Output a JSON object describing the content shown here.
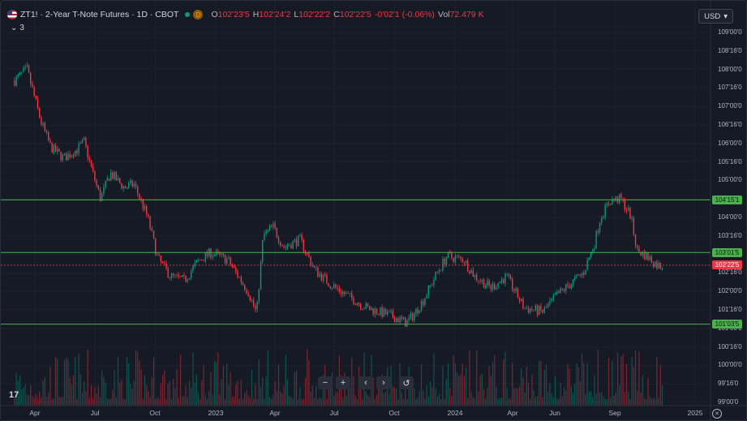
{
  "symbol": {
    "title": "ZT1! · 2-Year T-Note Futures · 1D · CBOT",
    "open_label": "O",
    "open": "102'23'5",
    "high_label": "H",
    "high": "102'24'2",
    "low_label": "L",
    "low": "102'22'2",
    "close_label": "C",
    "close": "102'22'5",
    "change": "-0'02'1 (-0.06%)",
    "vol_label": "Vol",
    "volume": "72.479 K",
    "d_badge": "D",
    "indicators_count": "3"
  },
  "currency": "USD",
  "price_axis": [
    "109'00'0",
    "108'16'0",
    "108'00'0",
    "107'16'0",
    "107'00'0",
    "106'16'0",
    "106'00'0",
    "105'16'0",
    "105'00'0",
    "104'16'0",
    "104'00'0",
    "103'16'0",
    "103'00'0",
    "102'16'0",
    "102'00'0",
    "101'16'0",
    "101'00'0",
    "100'16'0",
    "100'00'0",
    "99'16'0",
    "99'00'0"
  ],
  "time_axis": [
    "Apr",
    "Jul",
    "Oct",
    "2023",
    "Apr",
    "Jul",
    "Oct",
    "2024",
    "Apr",
    "Jun",
    "Sep",
    "2025"
  ],
  "price_tags": [
    {
      "label": "104'15'1",
      "kind": "level"
    },
    {
      "label": "103'01'5",
      "kind": "level"
    },
    {
      "label": "102'22'5",
      "kind": "last"
    },
    {
      "label": "101'03'5",
      "kind": "level"
    }
  ],
  "toolbar": {
    "zoom_out": "−",
    "zoom_in": "+",
    "scroll_left": "‹",
    "scroll_right": "›",
    "reset": "↺"
  },
  "logo": "17",
  "colors": {
    "up": "#089981",
    "down": "#f23645",
    "level_line": "#4caf50",
    "last_line": "#f23645"
  },
  "chart_data": {
    "type": "candlestick",
    "title": "",
    "y_unit": "price (points, 32nds, 8ths of 32nds)",
    "ylim": [
      99.0,
      109.0
    ],
    "horizontal_levels": [
      104.4746,
      103.0508,
      101.1133
    ],
    "last_price": 102.707,
    "x_start": "2022-03",
    "x_end": "2025-01",
    "close_path": [
      [
        "2022-03-01",
        107.7
      ],
      [
        "2022-03-20",
        108.0
      ],
      [
        "2022-04-10",
        106.6
      ],
      [
        "2022-04-25",
        105.9
      ],
      [
        "2022-05-15",
        105.6
      ],
      [
        "2022-06-05",
        105.85
      ],
      [
        "2022-06-15",
        106.05
      ],
      [
        "2022-06-25",
        105.4
      ],
      [
        "2022-07-10",
        104.5
      ],
      [
        "2022-07-25",
        105.2
      ],
      [
        "2022-08-15",
        104.8
      ],
      [
        "2022-08-30",
        104.9
      ],
      [
        "2022-09-20",
        104.0
      ],
      [
        "2022-10-05",
        102.9
      ],
      [
        "2022-10-25",
        102.4
      ],
      [
        "2022-11-15",
        102.3
      ],
      [
        "2022-12-05",
        102.8
      ],
      [
        "2022-12-25",
        103.05
      ],
      [
        "2023-01-20",
        102.85
      ],
      [
        "2023-02-20",
        102.0
      ],
      [
        "2023-03-05",
        101.4
      ],
      [
        "2023-03-15",
        103.5
      ],
      [
        "2023-03-30",
        103.75
      ],
      [
        "2023-04-15",
        103.2
      ],
      [
        "2023-05-10",
        103.4
      ],
      [
        "2023-06-01",
        102.6
      ],
      [
        "2023-06-25",
        102.2
      ],
      [
        "2023-07-20",
        101.9
      ],
      [
        "2023-08-20",
        101.55
      ],
      [
        "2023-09-25",
        101.35
      ],
      [
        "2023-10-19",
        101.15
      ],
      [
        "2023-11-01",
        101.4
      ],
      [
        "2023-11-15",
        101.8
      ],
      [
        "2023-12-05",
        102.5
      ],
      [
        "2023-12-20",
        102.95
      ],
      [
        "2024-01-15",
        102.85
      ],
      [
        "2024-02-01",
        102.4
      ],
      [
        "2024-02-25",
        102.1
      ],
      [
        "2024-03-20",
        102.4
      ],
      [
        "2024-04-16",
        101.55
      ],
      [
        "2024-05-15",
        101.45
      ],
      [
        "2024-06-05",
        101.9
      ],
      [
        "2024-06-25",
        102.2
      ],
      [
        "2024-07-15",
        102.5
      ],
      [
        "2024-08-01",
        103.3
      ],
      [
        "2024-08-10",
        104.0
      ],
      [
        "2024-08-25",
        104.45
      ],
      [
        "2024-09-10",
        104.5
      ],
      [
        "2024-09-25",
        104.05
      ],
      [
        "2024-10-05",
        103.1
      ],
      [
        "2024-10-20",
        102.95
      ],
      [
        "2024-11-05",
        102.7
      ],
      [
        "2024-11-15",
        102.71
      ]
    ],
    "volume_scale": "relative"
  }
}
